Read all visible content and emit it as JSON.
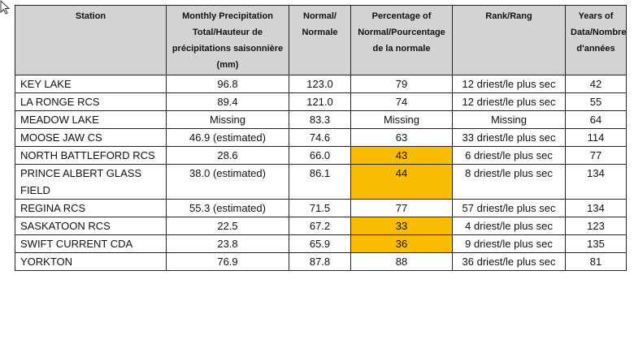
{
  "table": {
    "headers": [
      "Station",
      "Monthly Precipitation Total/Hauteur de précipitations saisonnière (mm)",
      "Normal/ Normale",
      "Percentage of Normal/Pourcentage de la normale",
      "Rank/Rang",
      "Years of Data/Nombre d'années"
    ],
    "highlight_color": "#fbbc04",
    "header_background": "#d3d3d3",
    "rows": [
      {
        "station": "KEY LAKE",
        "total": "96.8",
        "normal": "123.0",
        "percent": "79",
        "rank": "12 driest/le plus sec",
        "years": "42",
        "highlight": false
      },
      {
        "station": "LA RONGE RCS",
        "total": "89.4",
        "normal": "121.0",
        "percent": "74",
        "rank": "12 driest/le plus sec",
        "years": "55",
        "highlight": false
      },
      {
        "station": "MEADOW LAKE",
        "total": "Missing",
        "normal": "83.3",
        "percent": "Missing",
        "rank": "Missing",
        "years": "64",
        "highlight": false
      },
      {
        "station": "MOOSE JAW CS",
        "total": "46.9 (estimated)",
        "normal": "74.6",
        "percent": "63",
        "rank": "33 driest/le plus sec",
        "years": "114",
        "highlight": false
      },
      {
        "station": "NORTH BATTLEFORD RCS",
        "total": "28.6",
        "normal": "66.0",
        "percent": "43",
        "rank": "6 driest/le plus sec",
        "years": "77",
        "highlight": true
      },
      {
        "station": "PRINCE ALBERT GLASS FIELD",
        "total": "38.0 (estimated)",
        "normal": "86.1",
        "percent": "44",
        "rank": "8 driest/le plus sec",
        "years": "134",
        "highlight": true
      },
      {
        "station": "REGINA RCS",
        "total": "55.3 (estimated)",
        "normal": "71.5",
        "percent": "77",
        "rank": "57 driest/le plus sec",
        "years": "134",
        "highlight": false
      },
      {
        "station": "SASKATOON RCS",
        "total": "22.5",
        "normal": "67.2",
        "percent": "33",
        "rank": "4 driest/le plus sec",
        "years": "123",
        "highlight": true
      },
      {
        "station": "SWIFT CURRENT CDA",
        "total": "23.8",
        "normal": "65.9",
        "percent": "36",
        "rank": "9 driest/le plus sec",
        "years": "135",
        "highlight": true
      },
      {
        "station": "YORKTON",
        "total": "76.9",
        "normal": "87.8",
        "percent": "88",
        "rank": "36 driest/le plus sec",
        "years": "81",
        "highlight": false
      }
    ]
  }
}
